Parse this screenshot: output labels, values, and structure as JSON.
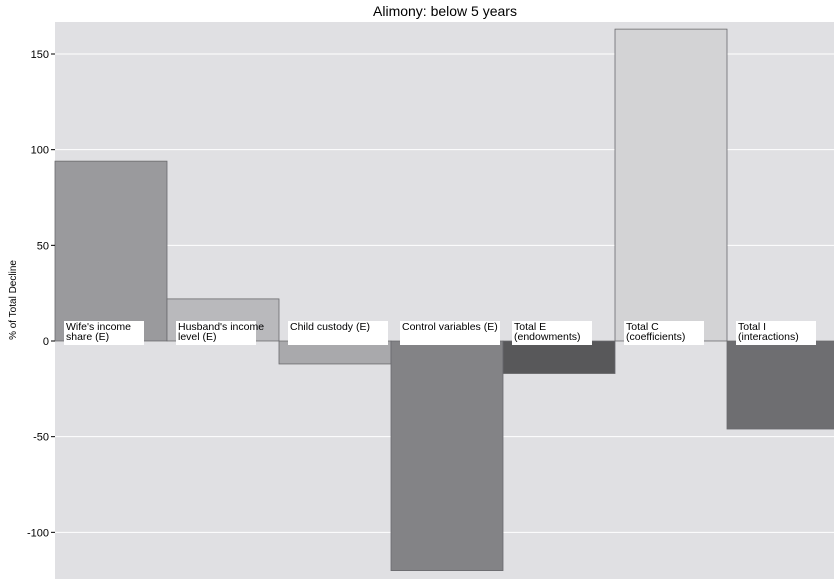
{
  "chart_data": {
    "type": "bar",
    "title": "Alimony: below 5 years",
    "xlabel": "",
    "ylabel": "% of Total Decline",
    "ylim": [
      -125,
      165
    ],
    "yticks": [
      -100,
      -50,
      0,
      50,
      100,
      150
    ],
    "ytick_labels": [
      "-100",
      "-50",
      "0",
      "50",
      "100",
      "150"
    ],
    "grid": true,
    "categories": [
      [
        "Wife's income",
        "share (E)"
      ],
      [
        "Husband's income",
        "level (E)"
      ],
      [
        "Child custody (E)"
      ],
      [
        "Control variables (E)"
      ],
      [
        "Total E",
        "(endowments)"
      ],
      [
        "Total C",
        "(coefficients)"
      ],
      [
        "Total I",
        "(interactions)"
      ]
    ],
    "values": [
      94,
      22,
      -12,
      -120,
      -17,
      163,
      -46
    ],
    "colors": [
      "#9a9a9d",
      "#b9b9bc",
      "#a9a9ac",
      "#838386",
      "#58585a",
      "#d3d3d5",
      "#6e6e71"
    ],
    "background_color": "#e0e0e3"
  }
}
